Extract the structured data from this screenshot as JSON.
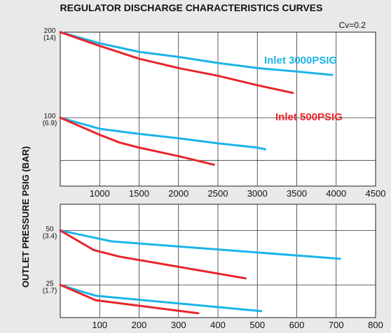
{
  "chart_data": [
    {
      "type": "line",
      "title": "REGULATOR DISCHARGE CHARACTERISTICS CURVES",
      "ylabel": "OUTLET PRESSURE PSIG (BAR)",
      "note": "Cv=0.2",
      "xlim": [
        500,
        4500
      ],
      "ylim": [
        20,
        200
      ],
      "xticks": [
        1000,
        1500,
        2000,
        2500,
        3000,
        3500,
        4000,
        4500
      ],
      "yticks": [
        {
          "value": 200,
          "label": "200",
          "sublabel": "(14)"
        },
        {
          "value": 100,
          "label": "100",
          "sublabel": "(6.9)"
        }
      ],
      "grid": true,
      "series": [
        {
          "name": "Inlet 3000 PSIG",
          "color": "#1cb4e8",
          "x": [
            500,
            1000,
            1500,
            2000,
            2500,
            3000,
            3500,
            3950
          ],
          "y": [
            200,
            187,
            177,
            171,
            164,
            158,
            154,
            150
          ]
        },
        {
          "name": "Inlet 500 PSIG",
          "color": "#e8262b",
          "x": [
            500,
            1000,
            1500,
            2000,
            2500,
            3000,
            3450
          ],
          "y": [
            200,
            184,
            169,
            158,
            149,
            138,
            129
          ]
        },
        {
          "name": "Inlet 3000 PSIG",
          "color": "#1cb4e8",
          "x": [
            500,
            1000,
            1500,
            2000,
            2500,
            3000,
            3100
          ],
          "y": [
            100,
            87,
            81,
            76,
            70,
            65,
            63
          ]
        },
        {
          "name": "Inlet 500 PSIG",
          "color": "#e8262b",
          "x": [
            500,
            1000,
            1250,
            1500,
            2000,
            2450
          ],
          "y": [
            100,
            80,
            71,
            65,
            55,
            45
          ]
        }
      ],
      "legend": [
        {
          "label": "Inlet 3000PSIG",
          "color": "#1cb4e8"
        },
        {
          "label": "Inlet 500PSIG",
          "color": "#e8262b"
        }
      ]
    },
    {
      "type": "line",
      "xlim": [
        0,
        800
      ],
      "ylim": [
        10,
        62
      ],
      "xticks": [
        100,
        200,
        300,
        400,
        500,
        600,
        700,
        800
      ],
      "yticks": [
        {
          "value": 50,
          "label": "50",
          "sublabel": "(3.4)"
        },
        {
          "value": 25,
          "label": "25",
          "sublabel": "(1.7)"
        }
      ],
      "grid": true,
      "series": [
        {
          "name": "Inlet 3000 PSIG",
          "color": "#1cb4e8",
          "x": [
            0,
            130,
            710
          ],
          "y": [
            50,
            45,
            37
          ]
        },
        {
          "name": "Inlet 500 PSIG",
          "color": "#e8262b",
          "x": [
            0,
            85,
            150,
            470
          ],
          "y": [
            50,
            41,
            38,
            28
          ]
        },
        {
          "name": "Inlet 3000 PSIG",
          "color": "#1cb4e8",
          "x": [
            0,
            90,
            510
          ],
          "y": [
            25,
            20,
            13
          ]
        },
        {
          "name": "Inlet 500 PSIG",
          "color": "#e8262b",
          "x": [
            0,
            90,
            350
          ],
          "y": [
            25,
            18,
            12
          ]
        }
      ]
    }
  ]
}
